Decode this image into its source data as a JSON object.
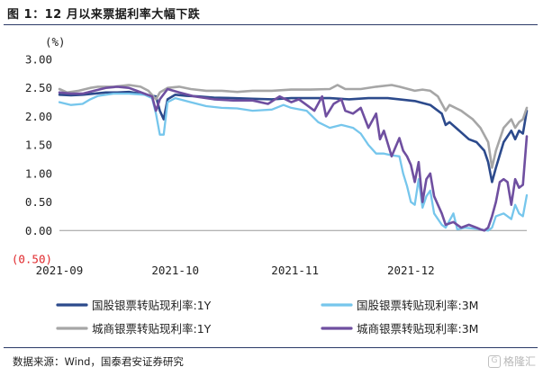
{
  "figure": {
    "title": "图 1：12 月以来票据利率大幅下跌",
    "source": "数据来源：Wind，国泰君安证券研究",
    "watermark": "格隆汇",
    "watermark_logo": "G"
  },
  "chart_data": {
    "type": "line",
    "title": "图 1：12 月以来票据利率大幅下跌",
    "ylabel": "(%)",
    "xlabel": "",
    "ylim": [
      -0.5,
      3.0
    ],
    "yticks": [
      {
        "value": 3.0,
        "label": "3.00",
        "negative": false
      },
      {
        "value": 2.5,
        "label": "2.50",
        "negative": false
      },
      {
        "value": 2.0,
        "label": "2.00",
        "negative": false
      },
      {
        "value": 1.5,
        "label": "1.50",
        "negative": false
      },
      {
        "value": 1.0,
        "label": "1.00",
        "negative": false
      },
      {
        "value": 0.5,
        "label": "0.50",
        "negative": false
      },
      {
        "value": 0.0,
        "label": "0.00",
        "negative": false
      },
      {
        "value": -0.5,
        "label": "(0.50)",
        "negative": true
      }
    ],
    "xticks": [
      {
        "label": "2021-09",
        "t": 0
      },
      {
        "label": "2021-10",
        "t": 30
      },
      {
        "label": "2021-11",
        "t": 61
      },
      {
        "label": "2021-12",
        "t": 91
      }
    ],
    "x_range": [
      0,
      121
    ],
    "grid": false,
    "legend": "bottom",
    "series": [
      {
        "name": "国股银票转贴现利率:1Y",
        "color": "#2c4a8c",
        "width": 2.6,
        "points": [
          [
            0,
            2.38
          ],
          [
            3,
            2.37
          ],
          [
            6,
            2.38
          ],
          [
            9,
            2.4
          ],
          [
            12,
            2.42
          ],
          [
            15,
            2.42
          ],
          [
            18,
            2.43
          ],
          [
            21,
            2.4
          ],
          [
            24,
            2.36
          ],
          [
            25,
            2.35
          ],
          [
            26,
            2.1
          ],
          [
            27,
            1.95
          ],
          [
            28,
            2.3
          ],
          [
            30,
            2.38
          ],
          [
            33,
            2.36
          ],
          [
            36,
            2.35
          ],
          [
            40,
            2.33
          ],
          [
            45,
            2.32
          ],
          [
            50,
            2.31
          ],
          [
            55,
            2.3
          ],
          [
            60,
            2.32
          ],
          [
            65,
            2.32
          ],
          [
            70,
            2.32
          ],
          [
            75,
            2.3
          ],
          [
            80,
            2.32
          ],
          [
            85,
            2.32
          ],
          [
            88,
            2.3
          ],
          [
            92,
            2.27
          ],
          [
            96,
            2.2
          ],
          [
            99,
            2.05
          ],
          [
            100,
            1.85
          ],
          [
            101,
            1.9
          ],
          [
            103,
            1.78
          ],
          [
            106,
            1.6
          ],
          [
            108,
            1.55
          ],
          [
            110,
            1.4
          ],
          [
            111,
            1.2
          ],
          [
            112,
            0.85
          ],
          [
            113,
            1.1
          ],
          [
            115,
            1.55
          ],
          [
            117,
            1.75
          ],
          [
            118,
            1.6
          ],
          [
            119,
            1.75
          ],
          [
            120,
            1.7
          ],
          [
            121,
            2.1
          ]
        ]
      },
      {
        "name": "国股银票转贴现利率:3M",
        "color": "#76c6ec",
        "width": 2.3,
        "points": [
          [
            0,
            2.25
          ],
          [
            3,
            2.2
          ],
          [
            6,
            2.22
          ],
          [
            8,
            2.3
          ],
          [
            10,
            2.36
          ],
          [
            14,
            2.4
          ],
          [
            18,
            2.4
          ],
          [
            22,
            2.38
          ],
          [
            24,
            2.32
          ],
          [
            25,
            2.05
          ],
          [
            26,
            1.68
          ],
          [
            27,
            1.68
          ],
          [
            28,
            2.25
          ],
          [
            30,
            2.32
          ],
          [
            34,
            2.25
          ],
          [
            38,
            2.18
          ],
          [
            42,
            2.15
          ],
          [
            46,
            2.14
          ],
          [
            50,
            2.1
          ],
          [
            55,
            2.12
          ],
          [
            58,
            2.2
          ],
          [
            60,
            2.15
          ],
          [
            64,
            2.1
          ],
          [
            67,
            1.9
          ],
          [
            70,
            1.8
          ],
          [
            73,
            1.85
          ],
          [
            76,
            1.8
          ],
          [
            78,
            1.7
          ],
          [
            80,
            1.5
          ],
          [
            82,
            1.35
          ],
          [
            84,
            1.35
          ],
          [
            86,
            1.32
          ],
          [
            88,
            1.3
          ],
          [
            89,
            1.0
          ],
          [
            90,
            0.78
          ],
          [
            91,
            0.5
          ],
          [
            92,
            0.45
          ],
          [
            93,
            0.9
          ],
          [
            94,
            0.4
          ],
          [
            95,
            0.6
          ],
          [
            96,
            0.7
          ],
          [
            97,
            0.3
          ],
          [
            99,
            0.1
          ],
          [
            100,
            0.05
          ],
          [
            102,
            0.3
          ],
          [
            103,
            0.02
          ],
          [
            105,
            0.05
          ],
          [
            108,
            0.03
          ],
          [
            110,
            0.01
          ],
          [
            111,
            0.0
          ],
          [
            112,
            0.05
          ],
          [
            113,
            0.25
          ],
          [
            115,
            0.3
          ],
          [
            117,
            0.2
          ],
          [
            118,
            0.45
          ],
          [
            119,
            0.3
          ],
          [
            120,
            0.25
          ],
          [
            121,
            0.62
          ]
        ]
      },
      {
        "name": "城商银票转贴现利率:1Y",
        "color": "#a6a6a6",
        "width": 2.6,
        "points": [
          [
            0,
            2.48
          ],
          [
            2,
            2.42
          ],
          [
            5,
            2.45
          ],
          [
            8,
            2.5
          ],
          [
            10,
            2.52
          ],
          [
            14,
            2.52
          ],
          [
            18,
            2.55
          ],
          [
            21,
            2.52
          ],
          [
            23,
            2.45
          ],
          [
            25,
            2.3
          ],
          [
            26,
            2.42
          ],
          [
            28,
            2.5
          ],
          [
            31,
            2.52
          ],
          [
            34,
            2.48
          ],
          [
            38,
            2.45
          ],
          [
            42,
            2.45
          ],
          [
            46,
            2.43
          ],
          [
            50,
            2.45
          ],
          [
            55,
            2.45
          ],
          [
            60,
            2.47
          ],
          [
            65,
            2.47
          ],
          [
            70,
            2.48
          ],
          [
            72,
            2.55
          ],
          [
            74,
            2.48
          ],
          [
            78,
            2.48
          ],
          [
            82,
            2.52
          ],
          [
            86,
            2.55
          ],
          [
            88,
            2.52
          ],
          [
            92,
            2.45
          ],
          [
            94,
            2.47
          ],
          [
            96,
            2.45
          ],
          [
            98,
            2.35
          ],
          [
            100,
            2.1
          ],
          [
            101,
            2.2
          ],
          [
            104,
            2.1
          ],
          [
            107,
            1.95
          ],
          [
            109,
            1.8
          ],
          [
            111,
            1.55
          ],
          [
            112,
            1.1
          ],
          [
            113,
            1.4
          ],
          [
            115,
            1.8
          ],
          [
            117,
            1.95
          ],
          [
            118,
            1.8
          ],
          [
            119,
            1.9
          ],
          [
            120,
            1.95
          ],
          [
            121,
            2.15
          ]
        ]
      },
      {
        "name": "城商银票转贴现利率:3M",
        "color": "#6f4fa0",
        "width": 2.6,
        "points": [
          [
            0,
            2.42
          ],
          [
            3,
            2.4
          ],
          [
            6,
            2.4
          ],
          [
            9,
            2.45
          ],
          [
            12,
            2.5
          ],
          [
            15,
            2.52
          ],
          [
            18,
            2.5
          ],
          [
            20,
            2.45
          ],
          [
            22,
            2.4
          ],
          [
            24,
            2.35
          ],
          [
            25,
            2.1
          ],
          [
            26,
            2.3
          ],
          [
            28,
            2.48
          ],
          [
            31,
            2.42
          ],
          [
            35,
            2.35
          ],
          [
            40,
            2.3
          ],
          [
            45,
            2.28
          ],
          [
            50,
            2.28
          ],
          [
            54,
            2.22
          ],
          [
            57,
            2.35
          ],
          [
            60,
            2.25
          ],
          [
            62,
            2.3
          ],
          [
            64,
            2.2
          ],
          [
            66,
            2.1
          ],
          [
            68,
            2.35
          ],
          [
            69,
            2.0
          ],
          [
            71,
            2.22
          ],
          [
            73,
            2.3
          ],
          [
            74,
            2.1
          ],
          [
            76,
            2.05
          ],
          [
            78,
            2.15
          ],
          [
            80,
            1.8
          ],
          [
            82,
            2.05
          ],
          [
            83,
            1.6
          ],
          [
            84,
            1.75
          ],
          [
            86,
            1.3
          ],
          [
            88,
            1.62
          ],
          [
            89,
            1.4
          ],
          [
            90,
            1.3
          ],
          [
            91,
            1.15
          ],
          [
            92,
            0.85
          ],
          [
            93,
            1.2
          ],
          [
            94,
            0.5
          ],
          [
            95,
            0.9
          ],
          [
            96,
            1.0
          ],
          [
            97,
            0.6
          ],
          [
            98,
            0.45
          ],
          [
            99,
            0.3
          ],
          [
            100,
            0.1
          ],
          [
            102,
            0.15
          ],
          [
            104,
            0.05
          ],
          [
            106,
            0.1
          ],
          [
            108,
            0.05
          ],
          [
            109,
            0.02
          ],
          [
            110,
            0.0
          ],
          [
            111,
            0.05
          ],
          [
            112,
            0.25
          ],
          [
            113,
            0.5
          ],
          [
            114,
            0.85
          ],
          [
            115,
            0.9
          ],
          [
            116,
            0.85
          ],
          [
            117,
            0.45
          ],
          [
            118,
            0.9
          ],
          [
            119,
            0.75
          ],
          [
            120,
            0.8
          ],
          [
            121,
            1.65
          ]
        ]
      }
    ]
  }
}
